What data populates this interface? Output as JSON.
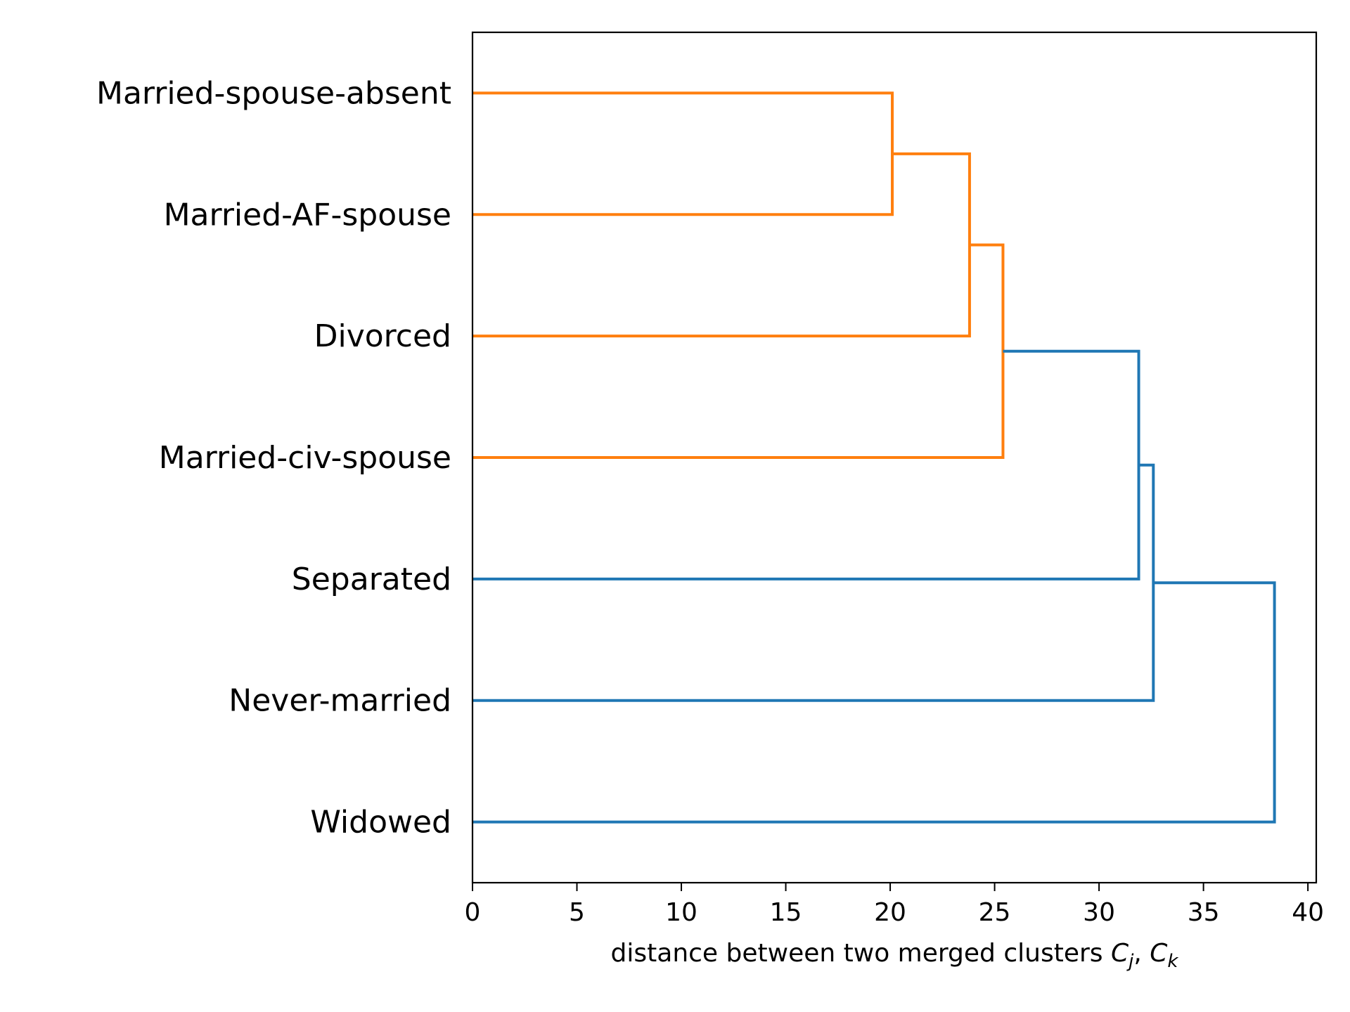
{
  "chart_data": {
    "type": "dendrogram",
    "orientation": "horizontal",
    "leaves": [
      "Married-spouse-absent",
      "Married-AF-spouse",
      "Divorced",
      "Married-civ-spouse",
      "Separated",
      "Never-married",
      "Widowed"
    ],
    "merges": [
      {
        "a": "Married-spouse-absent",
        "b": "Married-AF-spouse",
        "distance": 20.1,
        "color": "#ff7f0e",
        "id": "c1"
      },
      {
        "a": "c1",
        "b": "Divorced",
        "distance": 23.8,
        "color": "#ff7f0e",
        "id": "c2"
      },
      {
        "a": "c2",
        "b": "Married-civ-spouse",
        "distance": 25.4,
        "color": "#ff7f0e",
        "id": "c3"
      },
      {
        "a": "c3",
        "b": "Separated",
        "distance": 31.9,
        "color": "#1f77b4",
        "id": "c4"
      },
      {
        "a": "c4",
        "b": "Never-married",
        "distance": 32.6,
        "color": "#1f77b4",
        "id": "c5"
      },
      {
        "a": "c5",
        "b": "Widowed",
        "distance": 38.4,
        "color": "#1f77b4",
        "id": "c6"
      }
    ],
    "xlim": [
      0,
      40.4
    ],
    "xticks": [
      0,
      5,
      10,
      15,
      20,
      25,
      30,
      35,
      40
    ],
    "xlabel": {
      "text": "distance between two merged clusters ",
      "var1": "C",
      "sub1": "j",
      "sep": ", ",
      "var2": "C",
      "sub2": "k"
    },
    "colors": {
      "cluster_orange": "#ff7f0e",
      "cluster_blue": "#1f77b4"
    },
    "grid": false
  }
}
